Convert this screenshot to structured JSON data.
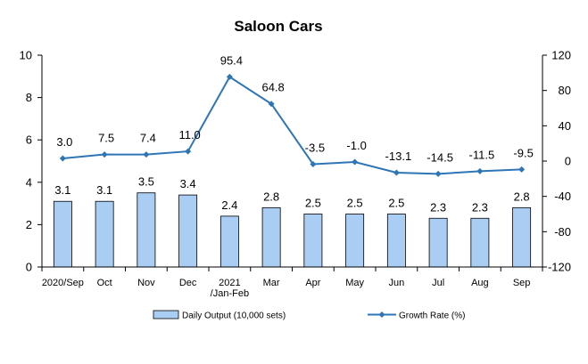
{
  "chart_data": {
    "type": "bar",
    "title": "Saloon Cars",
    "categories": [
      [
        "2020/Sep"
      ],
      [
        "Oct"
      ],
      [
        "Nov"
      ],
      [
        "Dec"
      ],
      [
        "2021",
        "/Jan-Feb"
      ],
      [
        "Mar"
      ],
      [
        "Apr"
      ],
      [
        "May"
      ],
      [
        "Jun"
      ],
      [
        "Jul"
      ],
      [
        "Aug"
      ],
      [
        "Sep"
      ]
    ],
    "series": [
      {
        "name": "Daily Output (10,000 sets)",
        "type": "bar",
        "axis": "left",
        "values": [
          3.1,
          3.1,
          3.5,
          3.4,
          2.4,
          2.8,
          2.5,
          2.5,
          2.5,
          2.3,
          2.3,
          2.8
        ],
        "labels": [
          "3.1",
          "3.1",
          "3.5",
          "3.4",
          "2.4",
          "2.8",
          "2.5",
          "2.5",
          "2.5",
          "2.3",
          "2.3",
          "2.8"
        ],
        "color": "#a9cdf3"
      },
      {
        "name": "Growth Rate (%)",
        "type": "line",
        "axis": "right",
        "values": [
          3.0,
          7.5,
          7.4,
          11.0,
          95.4,
          64.8,
          -3.5,
          -1.0,
          -13.1,
          -14.5,
          -11.5,
          -9.5
        ],
        "labels": [
          "3.0",
          "7.5",
          "7.4",
          "11.0",
          "95.4",
          "64.8",
          "-3.5",
          "-1.0",
          "-13.1",
          "-14.5",
          "-11.5",
          "-9.5"
        ],
        "color": "#2e75b6"
      }
    ],
    "y_left": {
      "min": 0,
      "max": 10,
      "ticks": [
        "0",
        "2",
        "4",
        "6",
        "8",
        "10"
      ]
    },
    "y_right": {
      "min": -120,
      "max": 120,
      "ticks": [
        "-120",
        "-80",
        "-40",
        "0",
        "40",
        "80",
        "120"
      ]
    },
    "grid": false,
    "legend": "bottom"
  }
}
